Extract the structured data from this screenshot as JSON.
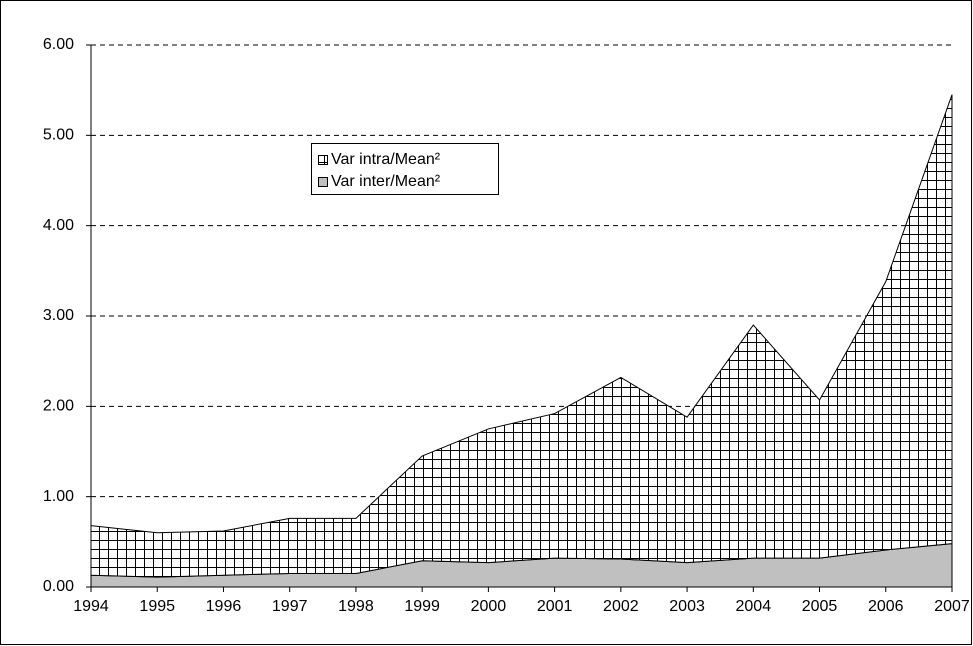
{
  "chart_data": {
    "type": "stacked_area",
    "categories": [
      "1994",
      "1995",
      "1996",
      "1997",
      "1998",
      "1999",
      "2000",
      "2001",
      "2002",
      "2003",
      "2004",
      "2005",
      "2006",
      "2007"
    ],
    "series": [
      {
        "name": "Var inter/Mean²",
        "color": "#c0c0c0",
        "values": [
          0.13,
          0.11,
          0.13,
          0.15,
          0.15,
          0.29,
          0.27,
          0.32,
          0.31,
          0.27,
          0.32,
          0.32,
          0.41,
          0.48
        ]
      },
      {
        "name": "Var intra/Mean²",
        "color": "#ffffff",
        "hatch": "grid",
        "values": [
          0.55,
          0.49,
          0.49,
          0.61,
          0.61,
          1.16,
          1.48,
          1.6,
          2.01,
          1.61,
          2.58,
          1.75,
          2.97,
          4.97
        ]
      }
    ],
    "ylim": [
      0,
      6
    ],
    "yticks": [
      {
        "value": 0,
        "label": "0.00"
      },
      {
        "value": 1,
        "label": "1.00"
      },
      {
        "value": 2,
        "label": "2.00"
      },
      {
        "value": 3,
        "label": "3.00"
      },
      {
        "value": 4,
        "label": "4.00"
      },
      {
        "value": 5,
        "label": "5.00"
      },
      {
        "value": 6,
        "label": "6.00"
      }
    ],
    "grid": true
  }
}
